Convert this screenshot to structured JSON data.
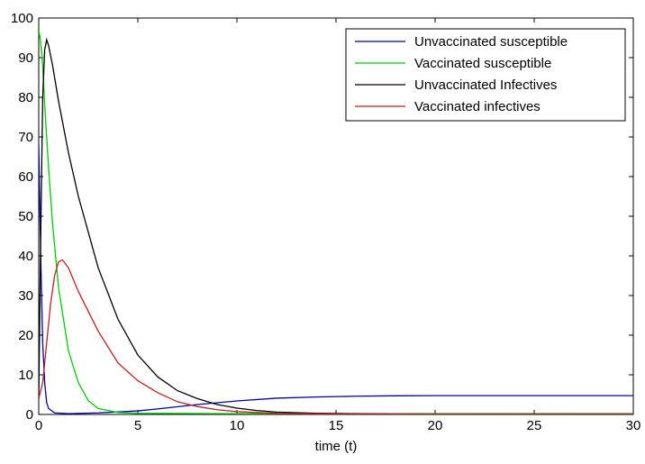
{
  "chart_data": {
    "type": "line",
    "title": "",
    "xlabel": "time (t)",
    "ylabel": "",
    "xlim": [
      0,
      30
    ],
    "ylim": [
      0,
      100
    ],
    "xticks": [
      0,
      5,
      10,
      15,
      20,
      25,
      30
    ],
    "yticks": [
      0,
      10,
      20,
      30,
      40,
      50,
      60,
      70,
      80,
      90,
      100
    ],
    "grid": false,
    "legend_position": "top-right",
    "series": [
      {
        "name": "Unvaccinated susceptible",
        "color": "#0000aa",
        "points": [
          [
            0,
            68
          ],
          [
            0.1,
            40
          ],
          [
            0.2,
            18
          ],
          [
            0.3,
            8
          ],
          [
            0.4,
            3
          ],
          [
            0.5,
            1.5
          ],
          [
            0.8,
            0.4
          ],
          [
            1.5,
            0.2
          ],
          [
            3,
            0.4
          ],
          [
            5,
            0.9
          ],
          [
            6,
            1.4
          ],
          [
            8,
            2.5
          ],
          [
            10,
            3.4
          ],
          [
            12,
            4.1
          ],
          [
            14,
            4.4
          ],
          [
            16,
            4.6
          ],
          [
            18,
            4.7
          ],
          [
            20,
            4.75
          ],
          [
            25,
            4.75
          ],
          [
            30,
            4.75
          ]
        ]
      },
      {
        "name": "Vaccinated susceptible",
        "color": "#00cc00",
        "points": [
          [
            0,
            97
          ],
          [
            0.1,
            94
          ],
          [
            0.2,
            88
          ],
          [
            0.3,
            78
          ],
          [
            0.5,
            62
          ],
          [
            0.7,
            48
          ],
          [
            1,
            32
          ],
          [
            1.5,
            16
          ],
          [
            2,
            8
          ],
          [
            2.5,
            3.5
          ],
          [
            3,
            1.5
          ],
          [
            4,
            0.5
          ],
          [
            5,
            0.3
          ],
          [
            10,
            0.2
          ],
          [
            30,
            0.2
          ]
        ]
      },
      {
        "name": "Unvaccinated Infectives",
        "color": "#000000",
        "points": [
          [
            0,
            4
          ],
          [
            0.1,
            45
          ],
          [
            0.2,
            80
          ],
          [
            0.3,
            92
          ],
          [
            0.4,
            94.5
          ],
          [
            0.5,
            93
          ],
          [
            0.7,
            88
          ],
          [
            1,
            79
          ],
          [
            1.5,
            66
          ],
          [
            2,
            55
          ],
          [
            3,
            37
          ],
          [
            4,
            24
          ],
          [
            5,
            15
          ],
          [
            6,
            9.5
          ],
          [
            7,
            6
          ],
          [
            8,
            4
          ],
          [
            9,
            2.5
          ],
          [
            10,
            1.6
          ],
          [
            11,
            1
          ],
          [
            12,
            0.6
          ],
          [
            14,
            0.3
          ],
          [
            18,
            0.1
          ],
          [
            30,
            0.1
          ]
        ]
      },
      {
        "name": "Vaccinated infectives",
        "color": "#bb2222",
        "points": [
          [
            0,
            4
          ],
          [
            0.2,
            8
          ],
          [
            0.4,
            18
          ],
          [
            0.6,
            28
          ],
          [
            0.8,
            35
          ],
          [
            1,
            38.5
          ],
          [
            1.2,
            39
          ],
          [
            1.5,
            37
          ],
          [
            2,
            31
          ],
          [
            3,
            21
          ],
          [
            4,
            13
          ],
          [
            5,
            8.5
          ],
          [
            6,
            5.5
          ],
          [
            7,
            3.2
          ],
          [
            8,
            2
          ],
          [
            9,
            1.2
          ],
          [
            10,
            0.7
          ],
          [
            12,
            0.3
          ],
          [
            15,
            0.1
          ],
          [
            30,
            0.05
          ]
        ]
      }
    ]
  }
}
